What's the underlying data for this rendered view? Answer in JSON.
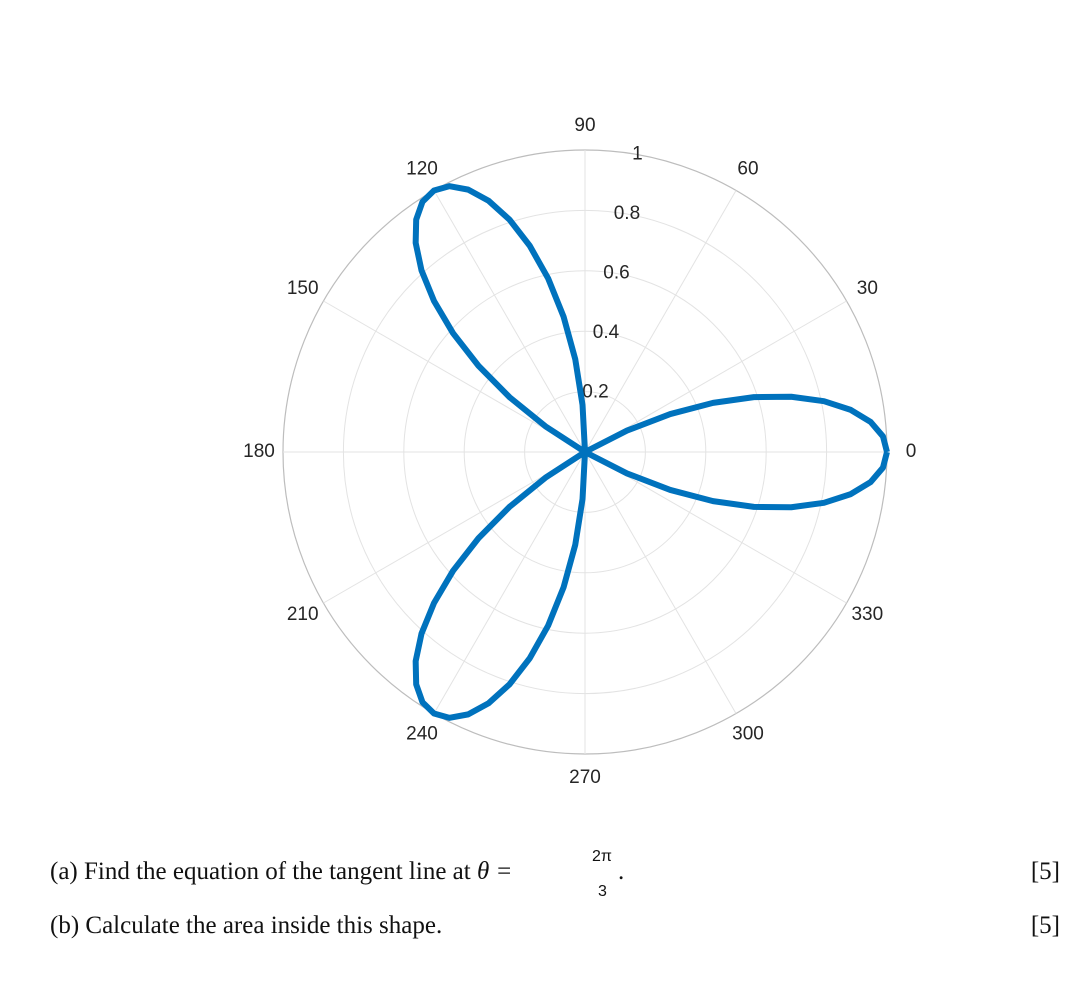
{
  "chart_data": {
    "type": "polar",
    "theta": [
      0,
      3,
      6,
      9,
      12,
      15,
      18,
      21,
      24,
      27,
      30,
      33,
      36,
      39,
      42,
      45,
      48,
      51,
      54,
      57,
      60,
      63,
      66,
      69,
      72,
      75,
      78,
      81,
      84,
      87,
      90,
      93,
      96,
      99,
      102,
      105,
      108,
      111,
      114,
      117,
      120,
      123,
      126,
      129,
      132,
      135,
      138,
      141,
      144,
      147,
      150,
      153,
      156,
      159,
      162,
      165,
      168,
      171,
      174,
      177,
      180
    ],
    "r": [
      1,
      0.988,
      0.951,
      0.891,
      0.809,
      0.707,
      0.588,
      0.454,
      0.309,
      0.156,
      0,
      -0.156,
      -0.309,
      -0.454,
      -0.588,
      -0.707,
      -0.809,
      -0.891,
      -0.951,
      -0.988,
      -1,
      -0.988,
      -0.951,
      -0.891,
      -0.809,
      -0.707,
      -0.588,
      -0.454,
      -0.309,
      -0.156,
      0,
      0.156,
      0.309,
      0.454,
      0.588,
      0.707,
      0.809,
      0.891,
      0.951,
      0.988,
      1,
      0.988,
      0.951,
      0.891,
      0.809,
      0.707,
      0.588,
      0.454,
      0.309,
      0.156,
      0,
      -0.156,
      -0.309,
      -0.454,
      -0.588,
      -0.707,
      -0.809,
      -0.891,
      -0.951,
      -0.988,
      -1
    ],
    "color": "#0072bd",
    "rlim": [
      0,
      1
    ],
    "rticks": [
      0.2,
      0.4,
      0.6,
      0.8,
      1
    ],
    "thetaticks": [
      0,
      30,
      60,
      90,
      120,
      150,
      180,
      210,
      240,
      270,
      300,
      330
    ],
    "grid": true
  },
  "questions": [
    {
      "text": "(a) Find the equation of the tangent line at",
      "lhs": "θ =",
      "numerator": "2π",
      "denominator": "3",
      "end": ".",
      "marks": "[5]"
    },
    {
      "text": "(b) Calculate the area inside this shape.",
      "marks": "[5]"
    }
  ]
}
